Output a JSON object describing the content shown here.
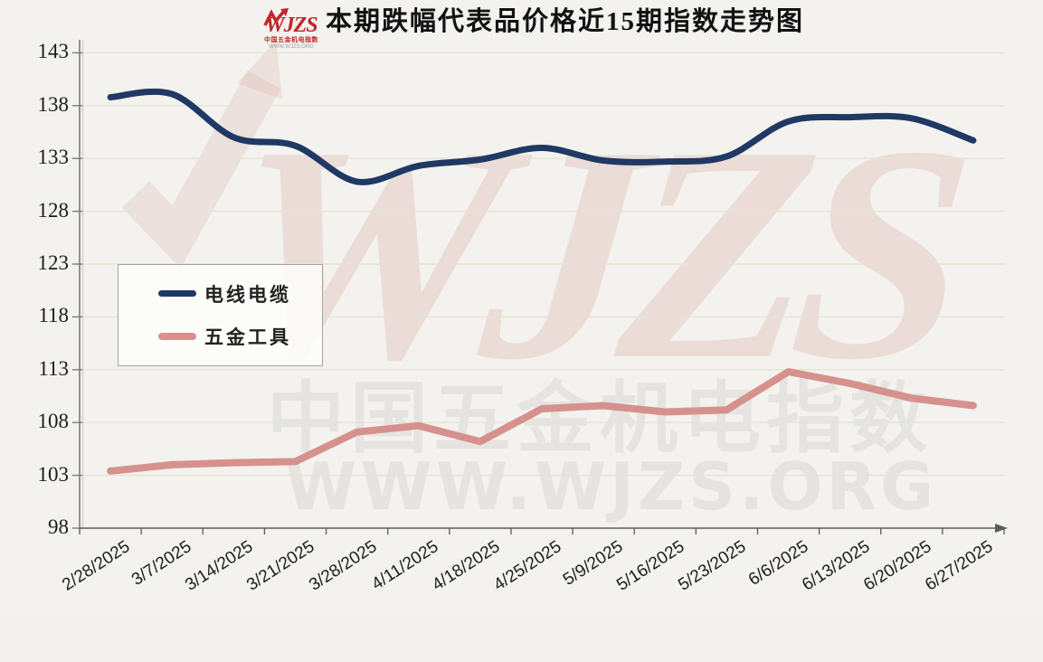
{
  "title": "本期跌幅代表品价格近15期指数走势图",
  "logo": {
    "brand": "WJZS",
    "subtitle": "中国五金机电指数",
    "url": "WWW.WJZS.ORG"
  },
  "watermark": {
    "brand": "WJZS",
    "line1": "中国五金机电指数",
    "line2": "WWW.WJZS.ORG"
  },
  "colors": {
    "series1": "#1F3864",
    "series2": "#D6918E",
    "grid": "#e7e4d3",
    "axis": "#7a7a7a",
    "logo_red": "#c4242b"
  },
  "chart_data": {
    "type": "line",
    "title": "本期跌幅代表品价格近15期指数走势图",
    "categories": [
      "2/28/2025",
      "3/7/2025",
      "3/14/2025",
      "3/21/2025",
      "3/28/2025",
      "4/11/2025",
      "4/18/2025",
      "4/25/2025",
      "5/9/2025",
      "5/16/2025",
      "5/23/2025",
      "6/6/2025",
      "6/13/2025",
      "6/20/2025",
      "6/27/2025"
    ],
    "series": [
      {
        "name": "电线电缆",
        "color": "#1F3864",
        "smooth": true,
        "width": 7,
        "values": [
          138.8,
          139.1,
          135.0,
          134.2,
          130.8,
          132.3,
          132.9,
          134.0,
          132.8,
          132.7,
          133.2,
          136.5,
          136.9,
          136.8,
          134.7
        ]
      },
      {
        "name": "五金工具",
        "color": "#D6918E",
        "smooth": false,
        "width": 8,
        "values": [
          103.4,
          104.0,
          104.2,
          104.3,
          107.1,
          107.7,
          106.2,
          109.3,
          109.6,
          109.0,
          109.2,
          112.8,
          111.7,
          110.3,
          109.6
        ]
      }
    ],
    "xlabel": "",
    "ylabel": "",
    "ylim": [
      98,
      143
    ],
    "ytick_step": 5,
    "grid": true,
    "legend_position": "middle-left"
  }
}
